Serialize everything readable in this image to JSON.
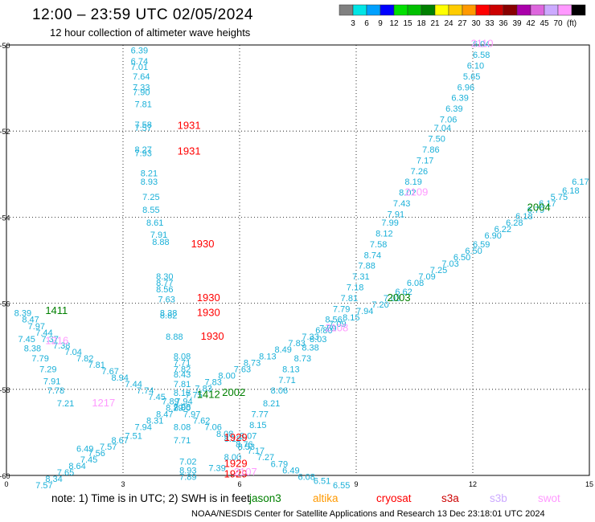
{
  "header": {
    "title": "12:00 – 23:59 UTC 02/05/2024",
    "subtitle": "12 hour collection of altimeter wave heights"
  },
  "colorbar": {
    "colors": [
      "#808080",
      "#00e5e5",
      "#00a0ff",
      "#0000ff",
      "#00e000",
      "#00c000",
      "#008000",
      "#ffff00",
      "#ffcc00",
      "#ff9900",
      "#ff0000",
      "#cc0000",
      "#880000",
      "#aa00aa",
      "#dd66dd",
      "#ccaaff",
      "#ff99ff",
      "#000000"
    ],
    "labels": [
      "3",
      "6",
      "9",
      "12",
      "15",
      "18",
      "21",
      "24",
      "27",
      "30",
      "33",
      "36",
      "39",
      "42",
      "45",
      "70",
      "(ft)"
    ]
  },
  "note": "note:  1) Time is in UTC;  2) SWH is in feet",
  "satellites": [
    {
      "name": "jason3",
      "color": "#008000"
    },
    {
      "name": "altika",
      "color": "#ff9900"
    },
    {
      "name": "cryosat",
      "color": "#ff0000"
    },
    {
      "name": "s3a",
      "color": "#cc0000"
    },
    {
      "name": "s3b",
      "color": "#ccaaff"
    },
    {
      "name": "swot",
      "color": "#ff99ff"
    }
  ],
  "footer": "NOAA/NESDIS Center for Satellite Applications and Research      13 Dec 23:18:01 UTC 2024",
  "chart_data": {
    "type": "scatter",
    "xlim": [
      0,
      15
    ],
    "ylim": [
      -60,
      -50
    ],
    "x_ticks": [
      "0",
      "3",
      "6",
      "9",
      "12",
      "15"
    ],
    "y_ticks": [
      "-50",
      "-52",
      "-54",
      "-56",
      "-58",
      "-60"
    ],
    "grid": true,
    "value_color": "#1ab0d8",
    "series": [
      {
        "name": "track-a",
        "values": [
          {
            "x": 3.2,
            "y": -50.2,
            "v": "6.39"
          },
          {
            "x": 3.2,
            "y": -50.45,
            "v": "6.74"
          },
          {
            "x": 3.2,
            "y": -50.58,
            "v": "7.01"
          },
          {
            "x": 3.25,
            "y": -50.8,
            "v": "7.64"
          },
          {
            "x": 3.25,
            "y": -51.05,
            "v": "7.33"
          },
          {
            "x": 3.25,
            "y": -51.17,
            "v": "7.90"
          },
          {
            "x": 3.3,
            "y": -51.45,
            "v": "7.81"
          },
          {
            "x": 3.3,
            "y": -51.92,
            "v": "7.58"
          },
          {
            "x": 3.3,
            "y": -52.0,
            "v": "7.57"
          },
          {
            "x": 3.3,
            "y": -52.5,
            "v": "8.27"
          },
          {
            "x": 3.3,
            "y": -52.58,
            "v": "7.93"
          },
          {
            "x": 3.45,
            "y": -53.05,
            "v": "8.21"
          },
          {
            "x": 3.45,
            "y": -53.25,
            "v": "8.93"
          },
          {
            "x": 3.5,
            "y": -53.6,
            "v": "7.25"
          },
          {
            "x": 3.5,
            "y": -53.9,
            "v": "8.55"
          },
          {
            "x": 3.6,
            "y": -54.2,
            "v": "8.61"
          },
          {
            "x": 3.7,
            "y": -54.48,
            "v": "7.91"
          },
          {
            "x": 3.75,
            "y": -54.65,
            "v": "8.88"
          },
          {
            "x": 3.85,
            "y": -55.45,
            "v": "8.30"
          },
          {
            "x": 3.85,
            "y": -55.6,
            "v": "8.77"
          },
          {
            "x": 3.85,
            "y": -55.75,
            "v": "8.56"
          },
          {
            "x": 3.9,
            "y": -55.98,
            "v": "7.63"
          },
          {
            "x": 3.95,
            "y": -56.3,
            "v": "8.38"
          },
          {
            "x": 3.95,
            "y": -56.35,
            "v": "8.82"
          },
          {
            "x": 4.1,
            "y": -56.85,
            "v": "8.88"
          },
          {
            "x": 4.3,
            "y": -57.3,
            "v": "8.08"
          },
          {
            "x": 4.3,
            "y": -57.45,
            "v": "7.71"
          },
          {
            "x": 4.3,
            "y": -57.6,
            "v": "7.82"
          },
          {
            "x": 4.3,
            "y": -57.72,
            "v": "8.43"
          },
          {
            "x": 4.3,
            "y": -57.95,
            "v": "7.81"
          },
          {
            "x": 4.3,
            "y": -58.15,
            "v": "8.18"
          },
          {
            "x": 4.3,
            "y": -58.48,
            "v": "7.98"
          },
          {
            "x": 4.3,
            "y": -58.95,
            "v": "8.08"
          },
          {
            "x": 4.3,
            "y": -59.25,
            "v": "7.71"
          },
          {
            "x": 4.45,
            "y": -59.75,
            "v": "7.02"
          },
          {
            "x": 4.45,
            "y": -59.95,
            "v": "8.93"
          },
          {
            "x": 4.45,
            "y": -60.1,
            "v": "7.89"
          }
        ]
      },
      {
        "name": "track-b",
        "values": [
          {
            "x": 0.2,
            "y": -56.3,
            "v": "8.39"
          },
          {
            "x": 0.4,
            "y": -56.45,
            "v": "8.47"
          },
          {
            "x": 0.55,
            "y": -56.6,
            "v": "7.97"
          },
          {
            "x": 0.75,
            "y": -56.75,
            "v": "7.44"
          },
          {
            "x": 0.3,
            "y": -56.9,
            "v": "7.45"
          },
          {
            "x": 0.9,
            "y": -56.9,
            "v": "7.37"
          },
          {
            "x": 1.2,
            "y": -57.05,
            "v": "7.38"
          },
          {
            "x": 0.45,
            "y": -57.12,
            "v": "8.38"
          },
          {
            "x": 1.5,
            "y": -57.2,
            "v": "7.04"
          },
          {
            "x": 0.65,
            "y": -57.35,
            "v": "7.79"
          },
          {
            "x": 1.8,
            "y": -57.35,
            "v": "7.82"
          },
          {
            "x": 2.1,
            "y": -57.5,
            "v": "7.81"
          },
          {
            "x": 0.85,
            "y": -57.6,
            "v": "7.29"
          },
          {
            "x": 2.45,
            "y": -57.65,
            "v": "7.67"
          },
          {
            "x": 2.7,
            "y": -57.8,
            "v": "8.94"
          },
          {
            "x": 0.95,
            "y": -57.88,
            "v": "7.91"
          },
          {
            "x": 3.05,
            "y": -57.95,
            "v": "7.44"
          },
          {
            "x": 1.05,
            "y": -58.1,
            "v": "7.78"
          },
          {
            "x": 3.35,
            "y": -58.1,
            "v": "7.74"
          },
          {
            "x": 3.65,
            "y": -58.25,
            "v": "7.45"
          },
          {
            "x": 1.3,
            "y": -58.4,
            "v": "7.21"
          },
          {
            "x": 4.0,
            "y": -58.35,
            "v": "7.89"
          },
          {
            "x": 4.3,
            "y": -58.5,
            "v": "8.00"
          },
          {
            "x": 4.55,
            "y": -58.65,
            "v": "7.97"
          },
          {
            "x": 4.8,
            "y": -58.8,
            "v": "7.62"
          },
          {
            "x": 5.1,
            "y": -58.95,
            "v": "7.06"
          },
          {
            "x": 5.4,
            "y": -59.1,
            "v": "8.08"
          },
          {
            "x": 5.6,
            "y": -59.22,
            "v": "8.19"
          },
          {
            "x": 5.9,
            "y": -59.35,
            "v": "8.76"
          },
          {
            "x": 6.2,
            "y": -59.5,
            "v": "7.17"
          },
          {
            "x": 6.45,
            "y": -59.65,
            "v": "7.27"
          },
          {
            "x": 6.8,
            "y": -59.8,
            "v": "6.79"
          },
          {
            "x": 7.1,
            "y": -59.95,
            "v": "6.49"
          },
          {
            "x": 7.5,
            "y": -60.1,
            "v": "6.08"
          },
          {
            "x": 7.9,
            "y": -60.2,
            "v": "6.51"
          },
          {
            "x": 8.4,
            "y": -60.3,
            "v": "6.55"
          }
        ]
      },
      {
        "name": "track-c",
        "values": [
          {
            "x": 0.75,
            "y": -60.3,
            "v": "7.57"
          },
          {
            "x": 1.0,
            "y": -60.15,
            "v": "8.34"
          },
          {
            "x": 1.3,
            "y": -60.0,
            "v": "7.65"
          },
          {
            "x": 1.6,
            "y": -59.85,
            "v": "8.64"
          },
          {
            "x": 1.9,
            "y": -59.7,
            "v": "7.45"
          },
          {
            "x": 2.1,
            "y": -59.55,
            "v": "7.56"
          },
          {
            "x": 2.4,
            "y": -59.4,
            "v": "7.57"
          },
          {
            "x": 1.8,
            "y": -59.45,
            "v": "6.49"
          },
          {
            "x": 2.7,
            "y": -59.25,
            "v": "8.67"
          },
          {
            "x": 3.05,
            "y": -59.15,
            "v": "7.51"
          },
          {
            "x": 3.3,
            "y": -58.95,
            "v": "7.94"
          },
          {
            "x": 3.6,
            "y": -58.8,
            "v": "8.31"
          },
          {
            "x": 3.85,
            "y": -58.65,
            "v": "8.47"
          },
          {
            "x": 4.1,
            "y": -58.5,
            "v": "8.29"
          },
          {
            "x": 4.35,
            "y": -58.35,
            "v": "7.94"
          },
          {
            "x": 4.6,
            "y": -58.2,
            "v": "7.75"
          },
          {
            "x": 4.85,
            "y": -58.05,
            "v": "7.83"
          },
          {
            "x": 5.1,
            "y": -57.9,
            "v": "7.83"
          },
          {
            "x": 5.45,
            "y": -57.75,
            "v": "8.00"
          },
          {
            "x": 5.85,
            "y": -57.6,
            "v": "7.63"
          },
          {
            "x": 6.1,
            "y": -57.45,
            "v": "8.73"
          },
          {
            "x": 6.5,
            "y": -57.3,
            "v": "8.13"
          },
          {
            "x": 6.9,
            "y": -57.15,
            "v": "8.49"
          },
          {
            "x": 7.25,
            "y": -57.0,
            "v": "7.83"
          },
          {
            "x": 7.6,
            "y": -56.85,
            "v": "7.33"
          },
          {
            "x": 7.95,
            "y": -56.7,
            "v": "6.80"
          },
          {
            "x": 8.3,
            "y": -56.55,
            "v": "7.09"
          },
          {
            "x": 8.65,
            "y": -56.4,
            "v": "8.15"
          },
          {
            "x": 9.0,
            "y": -56.25,
            "v": "7.94"
          },
          {
            "x": 9.4,
            "y": -56.1,
            "v": "7.20"
          },
          {
            "x": 9.7,
            "y": -55.95,
            "v": "7.03"
          },
          {
            "x": 10.0,
            "y": -55.8,
            "v": "6.62"
          },
          {
            "x": 10.3,
            "y": -55.6,
            "v": "6.08"
          },
          {
            "x": 10.6,
            "y": -55.45,
            "v": "7.09"
          },
          {
            "x": 10.9,
            "y": -55.3,
            "v": "7.25"
          },
          {
            "x": 11.2,
            "y": -55.15,
            "v": "7.03"
          },
          {
            "x": 11.5,
            "y": -55.0,
            "v": "6.50"
          },
          {
            "x": 11.8,
            "y": -54.85,
            "v": "6.50"
          },
          {
            "x": 12.0,
            "y": -54.7,
            "v": "6.59"
          },
          {
            "x": 12.3,
            "y": -54.5,
            "v": "6.90"
          },
          {
            "x": 12.55,
            "y": -54.35,
            "v": "6.22"
          },
          {
            "x": 12.85,
            "y": -54.2,
            "v": "6.28"
          },
          {
            "x": 13.1,
            "y": -54.05,
            "v": "6.18"
          },
          {
            "x": 13.4,
            "y": -53.9,
            "v": "6.79"
          },
          {
            "x": 13.7,
            "y": -53.75,
            "v": "6.17"
          },
          {
            "x": 14.0,
            "y": -53.6,
            "v": "5.75"
          },
          {
            "x": 14.3,
            "y": -53.45,
            "v": "6.18"
          },
          {
            "x": 14.55,
            "y": -53.25,
            "v": "6.17"
          }
        ]
      },
      {
        "name": "track-d",
        "values": [
          {
            "x": 12.0,
            "y": -50.05,
            "v": "6.04"
          },
          {
            "x": 12.0,
            "y": -50.3,
            "v": "6.58"
          },
          {
            "x": 11.85,
            "y": -50.55,
            "v": "6.10"
          },
          {
            "x": 11.75,
            "y": -50.8,
            "v": "5.65"
          },
          {
            "x": 11.6,
            "y": -51.05,
            "v": "6.96"
          },
          {
            "x": 11.45,
            "y": -51.3,
            "v": "6.39"
          },
          {
            "x": 11.3,
            "y": -51.55,
            "v": "6.39"
          },
          {
            "x": 11.15,
            "y": -51.8,
            "v": "7.06"
          },
          {
            "x": 11.0,
            "y": -52.0,
            "v": "7.04"
          },
          {
            "x": 10.85,
            "y": -52.25,
            "v": "7.50"
          },
          {
            "x": 10.7,
            "y": -52.5,
            "v": "7.86"
          },
          {
            "x": 10.55,
            "y": -52.75,
            "v": "7.17"
          },
          {
            "x": 10.4,
            "y": -53.0,
            "v": "7.26"
          },
          {
            "x": 10.25,
            "y": -53.25,
            "v": "8.19"
          },
          {
            "x": 10.1,
            "y": -53.5,
            "v": "8.02"
          },
          {
            "x": 9.95,
            "y": -53.75,
            "v": "7.43"
          },
          {
            "x": 9.8,
            "y": -54.0,
            "v": "7.91"
          },
          {
            "x": 9.65,
            "y": -54.2,
            "v": "7.99"
          },
          {
            "x": 9.5,
            "y": -54.45,
            "v": "8.12"
          },
          {
            "x": 9.35,
            "y": -54.7,
            "v": "7.58"
          },
          {
            "x": 9.2,
            "y": -54.95,
            "v": "8.74"
          },
          {
            "x": 9.05,
            "y": -55.2,
            "v": "7.88"
          },
          {
            "x": 8.9,
            "y": -55.45,
            "v": "7.31"
          },
          {
            "x": 8.75,
            "y": -55.7,
            "v": "7.18"
          },
          {
            "x": 8.6,
            "y": -55.95,
            "v": "7.81"
          },
          {
            "x": 8.4,
            "y": -56.2,
            "v": "7.79"
          },
          {
            "x": 8.2,
            "y": -56.45,
            "v": "8.56"
          },
          {
            "x": 8.05,
            "y": -56.65,
            "v": "7.59"
          },
          {
            "x": 7.8,
            "y": -56.9,
            "v": "8.03"
          },
          {
            "x": 7.6,
            "y": -57.1,
            "v": "8.38"
          },
          {
            "x": 7.4,
            "y": -57.35,
            "v": "8.73"
          },
          {
            "x": 7.1,
            "y": -57.6,
            "v": "8.13"
          },
          {
            "x": 7.0,
            "y": -57.85,
            "v": "7.71"
          },
          {
            "x": 6.8,
            "y": -58.1,
            "v": "8.06"
          },
          {
            "x": 6.6,
            "y": -58.4,
            "v": "8.21"
          },
          {
            "x": 6.3,
            "y": -58.65,
            "v": "7.77"
          },
          {
            "x": 6.25,
            "y": -58.9,
            "v": "8.15"
          },
          {
            "x": 6.0,
            "y": -59.15,
            "v": "8.07"
          },
          {
            "x": 5.95,
            "y": -59.4,
            "v": "8.53"
          },
          {
            "x": 5.6,
            "y": -59.65,
            "v": "8.00"
          },
          {
            "x": 5.2,
            "y": -59.9,
            "v": "7.39"
          }
        ]
      }
    ],
    "pass_labels": [
      {
        "x": 4.4,
        "y": -51.95,
        "text": "1931",
        "color": "#ff0000"
      },
      {
        "x": 4.4,
        "y": -52.55,
        "text": "1931",
        "color": "#ff0000"
      },
      {
        "x": 4.75,
        "y": -54.7,
        "text": "1930",
        "color": "#ff0000"
      },
      {
        "x": 4.9,
        "y": -55.95,
        "text": "1930",
        "color": "#ff0000"
      },
      {
        "x": 4.9,
        "y": -56.3,
        "text": "1930",
        "color": "#ff0000"
      },
      {
        "x": 5.0,
        "y": -56.85,
        "text": "1930",
        "color": "#ff0000"
      },
      {
        "x": 5.6,
        "y": -59.2,
        "text": "1929",
        "color": "#ff0000"
      },
      {
        "x": 5.6,
        "y": -59.8,
        "text": "1929",
        "color": "#ff0000"
      },
      {
        "x": 5.6,
        "y": -60.05,
        "text": "1929",
        "color": "#ff0000"
      },
      {
        "x": 1.0,
        "y": -56.25,
        "text": "1411",
        "color": "#008000"
      },
      {
        "x": 4.9,
        "y": -58.2,
        "text": "1412",
        "color": "#008000"
      },
      {
        "x": 5.55,
        "y": -58.15,
        "text": "2002",
        "color": "#008000"
      },
      {
        "x": 9.8,
        "y": -55.95,
        "text": "2003",
        "color": "#008000"
      },
      {
        "x": 13.4,
        "y": -53.85,
        "text": "2004",
        "color": "#008000"
      },
      {
        "x": 11.95,
        "y": -50.05,
        "text": "2110",
        "color": "#ff99ff"
      },
      {
        "x": 10.25,
        "y": -53.5,
        "text": "2109",
        "color": "#ff99ff"
      },
      {
        "x": 8.2,
        "y": -56.65,
        "text": "2108",
        "color": "#ff99ff"
      },
      {
        "x": 1.0,
        "y": -56.95,
        "text": "1216",
        "color": "#ff99ff"
      },
      {
        "x": 2.2,
        "y": -58.4,
        "text": "1217",
        "color": "#ff99ff"
      },
      {
        "x": 5.85,
        "y": -60.0,
        "text": "2107",
        "color": "#ff99ff"
      }
    ]
  }
}
